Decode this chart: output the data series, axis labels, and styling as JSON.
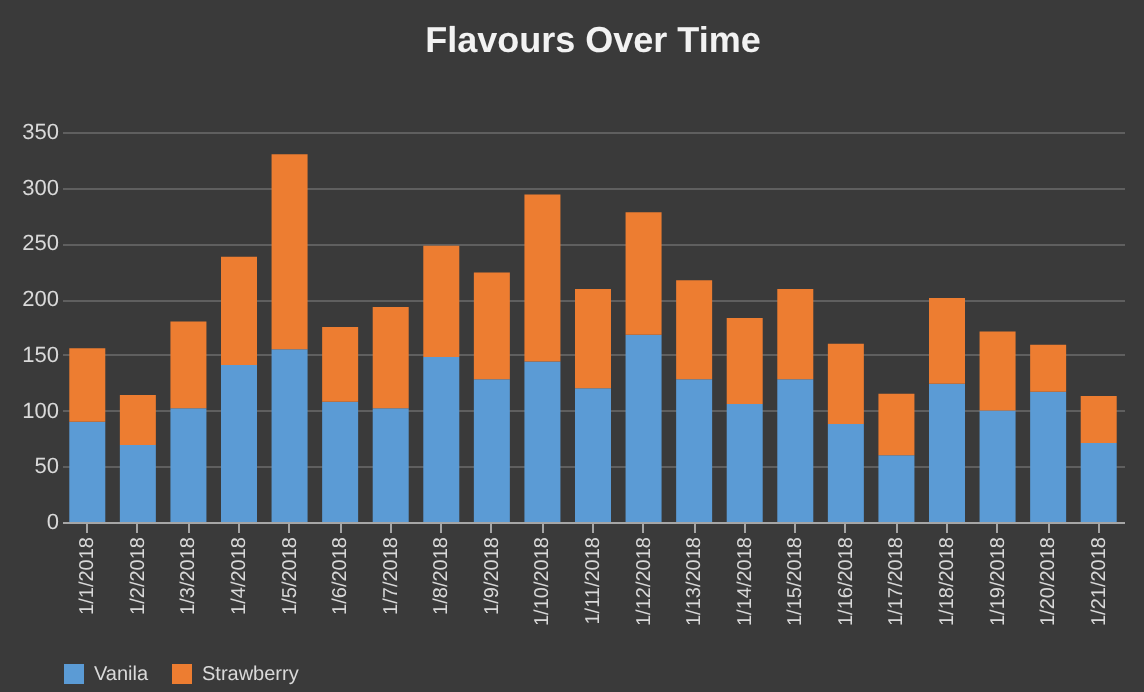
{
  "chart_data": {
    "type": "bar",
    "title": "Flavours Over Time",
    "stacked": true,
    "categories": [
      "1/1/2018",
      "1/2/2018",
      "1/3/2018",
      "1/4/2018",
      "1/5/2018",
      "1/6/2018",
      "1/7/2018",
      "1/8/2018",
      "1/9/2018",
      "1/10/2018",
      "1/11/2018",
      "1/12/2018",
      "1/13/2018",
      "1/14/2018",
      "1/15/2018",
      "1/16/2018",
      "1/17/2018",
      "1/18/2018",
      "1/19/2018",
      "1/20/2018",
      "1/21/2018"
    ],
    "series": [
      {
        "name": "Vanila",
        "color": "#5b9bd5",
        "values": [
          90,
          69,
          102,
          141,
          155,
          108,
          102,
          148,
          128,
          144,
          120,
          168,
          128,
          106,
          128,
          88,
          60,
          124,
          100,
          117,
          71
        ]
      },
      {
        "name": "Strawberry",
        "color": "#ed7d31",
        "values": [
          66,
          45,
          78,
          97,
          175,
          67,
          91,
          100,
          96,
          150,
          89,
          110,
          89,
          77,
          81,
          72,
          55,
          77,
          71,
          42,
          42
        ]
      }
    ],
    "ylim": [
      0,
      350
    ],
    "yticks": [
      0,
      50,
      100,
      150,
      200,
      250,
      300,
      350
    ],
    "grid": "y",
    "legend": "bottom"
  }
}
